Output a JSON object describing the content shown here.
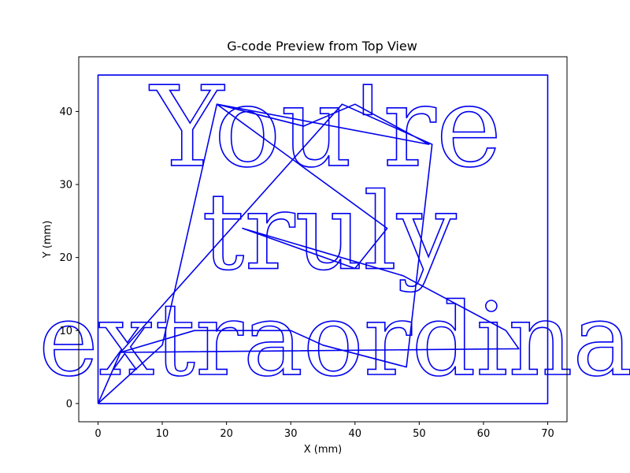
{
  "chart_data": {
    "type": "line",
    "title": "G-code Preview from Top View",
    "xlabel": "X (mm)",
    "ylabel": "Y (mm)",
    "xlim": [
      -3,
      73
    ],
    "ylim": [
      -2.5,
      47.5
    ],
    "x_ticks": [
      0,
      10,
      20,
      30,
      40,
      50,
      60,
      70
    ],
    "y_ticks": [
      0,
      10,
      20,
      30,
      40
    ],
    "grid": false,
    "legend": "none",
    "color": "#0000ee",
    "text_lines": [
      {
        "text": "You're",
        "x": 35.5,
        "y": 32.6,
        "height": 10.5
      },
      {
        "text": "truly",
        "x": 36,
        "y": 18.5,
        "height": 10
      },
      {
        "text": "extraordina",
        "x": 37,
        "y": 4,
        "height": 9.5
      }
    ],
    "series": [
      {
        "values_desc": "border",
        "x": [
          0,
          70,
          70,
          0,
          0
        ],
        "y": [
          0,
          0,
          45,
          45,
          0
        ]
      },
      {
        "values_desc": "travel",
        "x": [
          0,
          10,
          18.5,
          51.5,
          40,
          32,
          18.5,
          45,
          40,
          22.5,
          47.5,
          63.5,
          65.5,
          3.5,
          15,
          30,
          35,
          48,
          52,
          38,
          3.5,
          0
        ],
        "y": [
          0,
          8,
          41,
          35.5,
          41,
          38,
          41,
          24,
          18.5,
          24,
          17.5,
          10,
          7.5,
          7,
          10,
          10,
          8,
          5,
          35.5,
          41,
          7,
          0
        ]
      }
    ]
  }
}
